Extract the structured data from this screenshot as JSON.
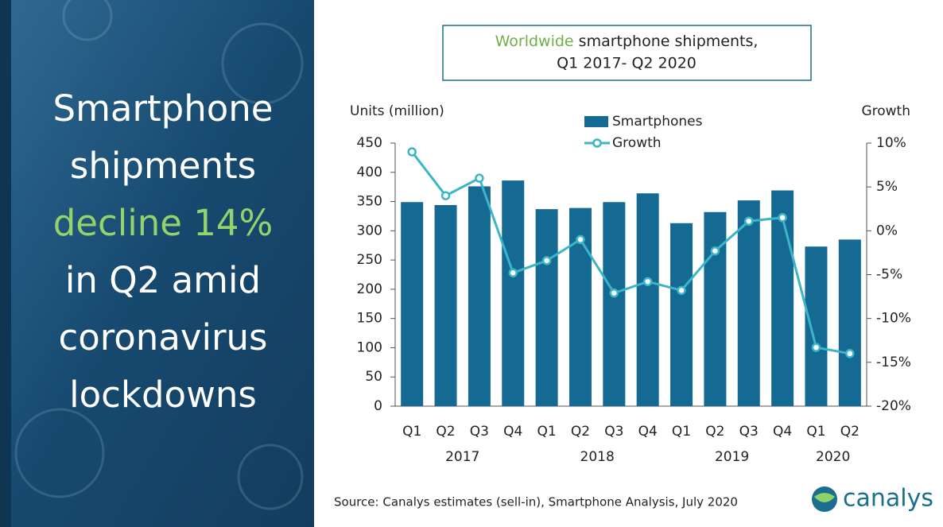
{
  "panel": {
    "headline": [
      "Smartphone",
      "shipments",
      "decline 14%",
      "in Q2 amid",
      "coronavirus",
      "lockdowns"
    ]
  },
  "source": "Source: Canalys estimates (sell-in), Smartphone Analysis, July 2020",
  "logo": "canalys",
  "chart_data": {
    "type": "bar",
    "title": [
      "Worldwide",
      "smartphone shipments,",
      "Q1 2017- Q2 2020"
    ],
    "y_label": "Units (million)",
    "y2_label": "Growth",
    "categories": [
      "Q1",
      "Q2",
      "Q3",
      "Q4",
      "Q1",
      "Q2",
      "Q3",
      "Q4",
      "Q1",
      "Q2",
      "Q3",
      "Q4",
      "Q1",
      "Q2"
    ],
    "groups": [
      {
        "label": "2017",
        "count": 4
      },
      {
        "label": "2018",
        "count": 4
      },
      {
        "label": "2019",
        "count": 4
      },
      {
        "label": "2020",
        "count": 2
      }
    ],
    "series": [
      {
        "name": "Smartphones",
        "type": "bar",
        "color": "#156a93",
        "values": [
          349,
          344,
          376,
          386,
          337,
          339,
          349,
          364,
          313,
          332,
          352,
          369,
          273,
          285
        ]
      },
      {
        "name": "Growth",
        "type": "line",
        "axis": "y2",
        "color": "#3cb6c6",
        "values": [
          9.0,
          4.0,
          6.0,
          -4.8,
          -3.4,
          -1.0,
          -7.1,
          -5.8,
          -6.8,
          -2.3,
          1.1,
          1.5,
          -13.3,
          -14
        ]
      }
    ],
    "ylim": [
      0,
      450
    ],
    "yticks": [
      0,
      50,
      100,
      150,
      200,
      250,
      300,
      350,
      400,
      450
    ],
    "y2lim": [
      -20,
      10
    ],
    "y2ticks": [
      {
        "value": -20,
        "label": "-20%"
      },
      {
        "value": -15,
        "label": "-15%"
      },
      {
        "value": -10,
        "label": "-10%"
      },
      {
        "value": -5,
        "label": "-5%"
      },
      {
        "value": 0,
        "label": "0%"
      },
      {
        "value": 5,
        "label": "5%"
      },
      {
        "value": 10,
        "label": "10%"
      }
    ],
    "legend": "top"
  }
}
